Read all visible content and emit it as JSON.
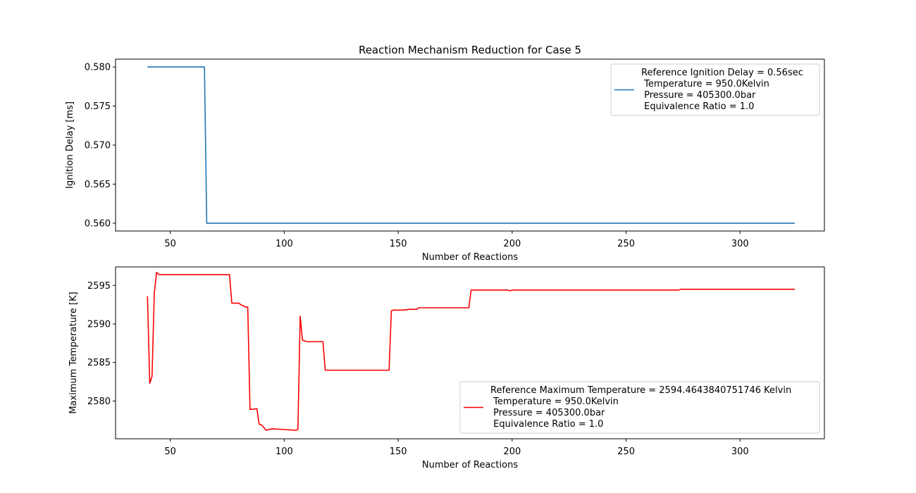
{
  "figure": {
    "title": "Reaction Mechanism Reduction for Case 5"
  },
  "chart_data": [
    {
      "type": "line",
      "title": "Reaction Mechanism Reduction for Case 5",
      "xlabel": "Number of Reactions",
      "ylabel": "Ignition Delay [ms]",
      "xlim": [
        26,
        337
      ],
      "ylim": [
        0.559,
        0.581
      ],
      "xticks": [
        50,
        100,
        150,
        200,
        250,
        300
      ],
      "yticks": [
        0.56,
        0.565,
        0.57,
        0.575,
        0.58
      ],
      "ytick_labels": [
        "0.560",
        "0.565",
        "0.570",
        "0.575",
        "0.580"
      ],
      "grid": false,
      "legend_position": "top-right",
      "legend_lines": [
        "Reference Ignition Delay = 0.56sec",
        " Temperature = 950.0Kelvin",
        " Pressure = 405300.0bar",
        " Equivalence Ratio = 1.0"
      ],
      "color": "#1f77b4",
      "series": [
        {
          "x": [
            40,
            65,
            66,
            324
          ],
          "y": [
            0.58,
            0.58,
            0.56,
            0.56
          ]
        }
      ]
    },
    {
      "type": "line",
      "xlabel": "Number of Reactions",
      "ylabel": "Maximum Temperature [K]",
      "xlim": [
        26,
        337
      ],
      "ylim": [
        2575.1,
        2597.4
      ],
      "xticks": [
        50,
        100,
        150,
        200,
        250,
        300
      ],
      "yticks": [
        2580,
        2585,
        2590,
        2595
      ],
      "ytick_labels": [
        "2580",
        "2585",
        "2590",
        "2595"
      ],
      "grid": false,
      "legend_position": "bottom-right",
      "legend_lines": [
        "Reference Maximum Temperature = 2594.4643840751746 Kelvin",
        " Temperature = 950.0Kelvin",
        " Pressure = 405300.0bar",
        " Equivalence Ratio = 1.0"
      ],
      "color": "#ff0000",
      "series": [
        {
          "x": [
            40,
            41,
            42,
            43,
            44,
            45,
            76,
            77,
            80,
            81,
            83,
            84,
            85,
            88,
            89,
            90,
            91,
            92,
            93,
            95,
            100,
            105,
            106,
            107,
            108,
            109,
            110,
            112,
            117,
            118,
            130,
            146,
            147,
            148,
            152,
            155,
            158,
            159,
            162,
            181,
            182,
            190,
            198,
            199,
            200,
            220,
            273,
            274,
            300,
            324
          ],
          "y": [
            2593.6,
            2582.3,
            2583.2,
            2594.0,
            2596.7,
            2596.4,
            2596.4,
            2592.7,
            2592.7,
            2592.5,
            2592.2,
            2592.2,
            2578.9,
            2579.0,
            2577.0,
            2576.9,
            2576.6,
            2576.2,
            2576.3,
            2576.4,
            2576.3,
            2576.2,
            2576.3,
            2591.0,
            2587.9,
            2587.8,
            2587.7,
            2587.7,
            2587.7,
            2584.0,
            2584.0,
            2584.0,
            2591.7,
            2591.8,
            2591.8,
            2591.9,
            2591.9,
            2592.1,
            2592.1,
            2592.1,
            2594.4,
            2594.4,
            2594.4,
            2594.3,
            2594.4,
            2594.4,
            2594.4,
            2594.5,
            2594.5,
            2594.5
          ]
        }
      ]
    }
  ]
}
